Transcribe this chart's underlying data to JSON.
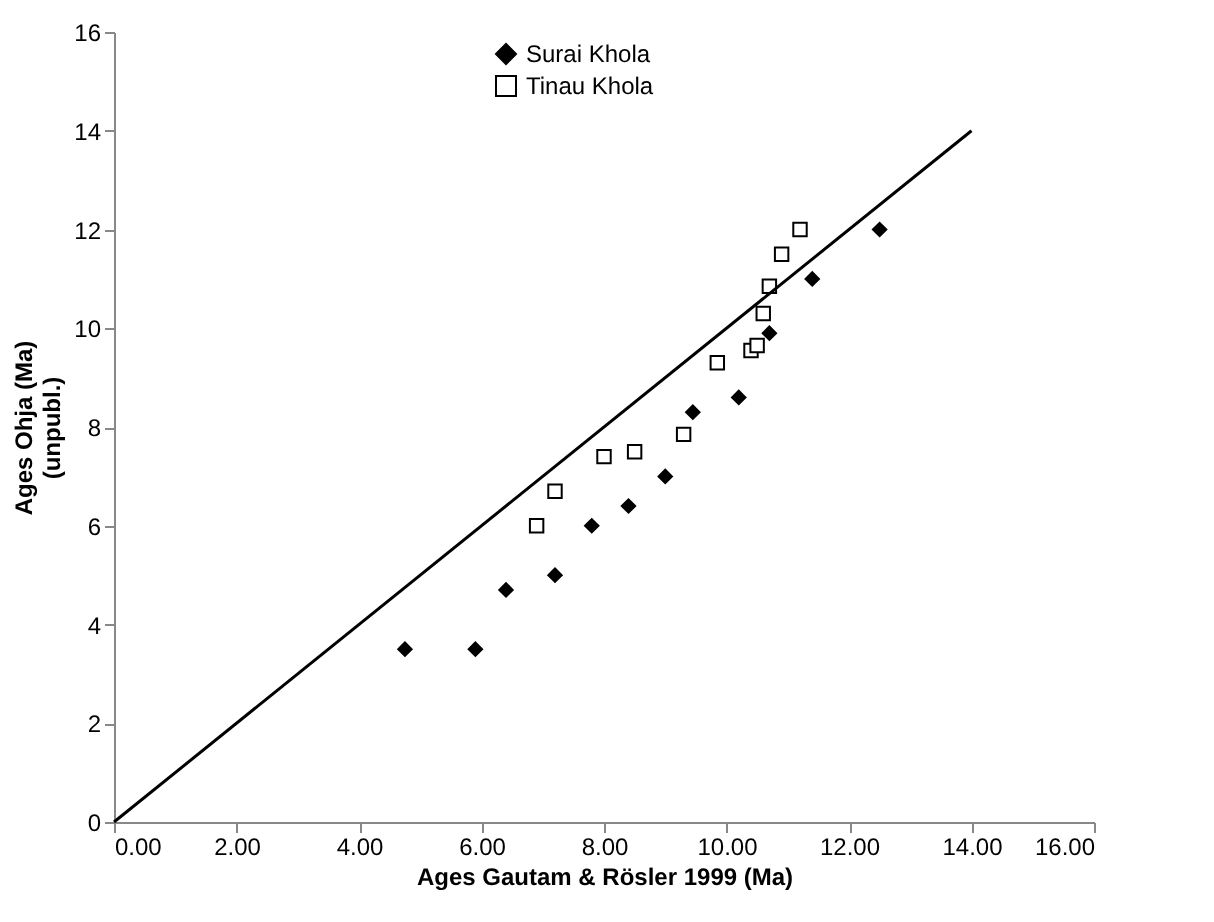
{
  "chart_data": {
    "type": "scatter",
    "xlabel": "Ages Gautam & Rösler 1999 (Ma)",
    "ylabel": "Ages Ohja (Ma)\n(unpubl.)",
    "xlim": [
      0,
      16
    ],
    "ylim": [
      0,
      16
    ],
    "xticks": [
      {
        "value": 0,
        "label": "0.00"
      },
      {
        "value": 2,
        "label": "2.00"
      },
      {
        "value": 4,
        "label": "4.00"
      },
      {
        "value": 6,
        "label": "6.00"
      },
      {
        "value": 8,
        "label": "8.00"
      },
      {
        "value": 10,
        "label": "10.00"
      },
      {
        "value": 12,
        "label": "12.00"
      },
      {
        "value": 14,
        "label": "14.00"
      },
      {
        "value": 16,
        "label": "16.00"
      }
    ],
    "yticks": [
      0,
      2,
      4,
      6,
      8,
      10,
      12,
      14,
      16
    ],
    "grid": false,
    "legend": "top",
    "series": [
      {
        "name": "Surai Khola",
        "color": "#000000",
        "marker": "diamond",
        "x": [
          4.75,
          5.9,
          6.4,
          7.2,
          7.8,
          8.4,
          9.0,
          9.4,
          9.45,
          10.2,
          10.7,
          11.4,
          12.5
        ],
        "values": [
          3.5,
          3.5,
          4.7,
          5.0,
          6.0,
          6.4,
          7.0,
          null,
          8.3,
          8.6,
          9.9,
          11.0,
          12.0
        ]
      },
      {
        "name": "Tinau Khola",
        "color": "#000000",
        "marker": "square",
        "x": [
          6.9,
          7.2,
          8.0,
          8.5,
          9.3,
          9.85,
          10.4,
          10.5,
          10.6,
          10.7,
          10.9,
          11.2
        ],
        "values": [
          6.0,
          6.7,
          7.4,
          7.5,
          7.85,
          9.3,
          9.55,
          9.65,
          10.3,
          10.85,
          11.5,
          12.0
        ]
      },
      {
        "type": "line",
        "color": "#000000",
        "x": [
          0,
          14
        ],
        "values": [
          0,
          14
        ]
      }
    ]
  }
}
